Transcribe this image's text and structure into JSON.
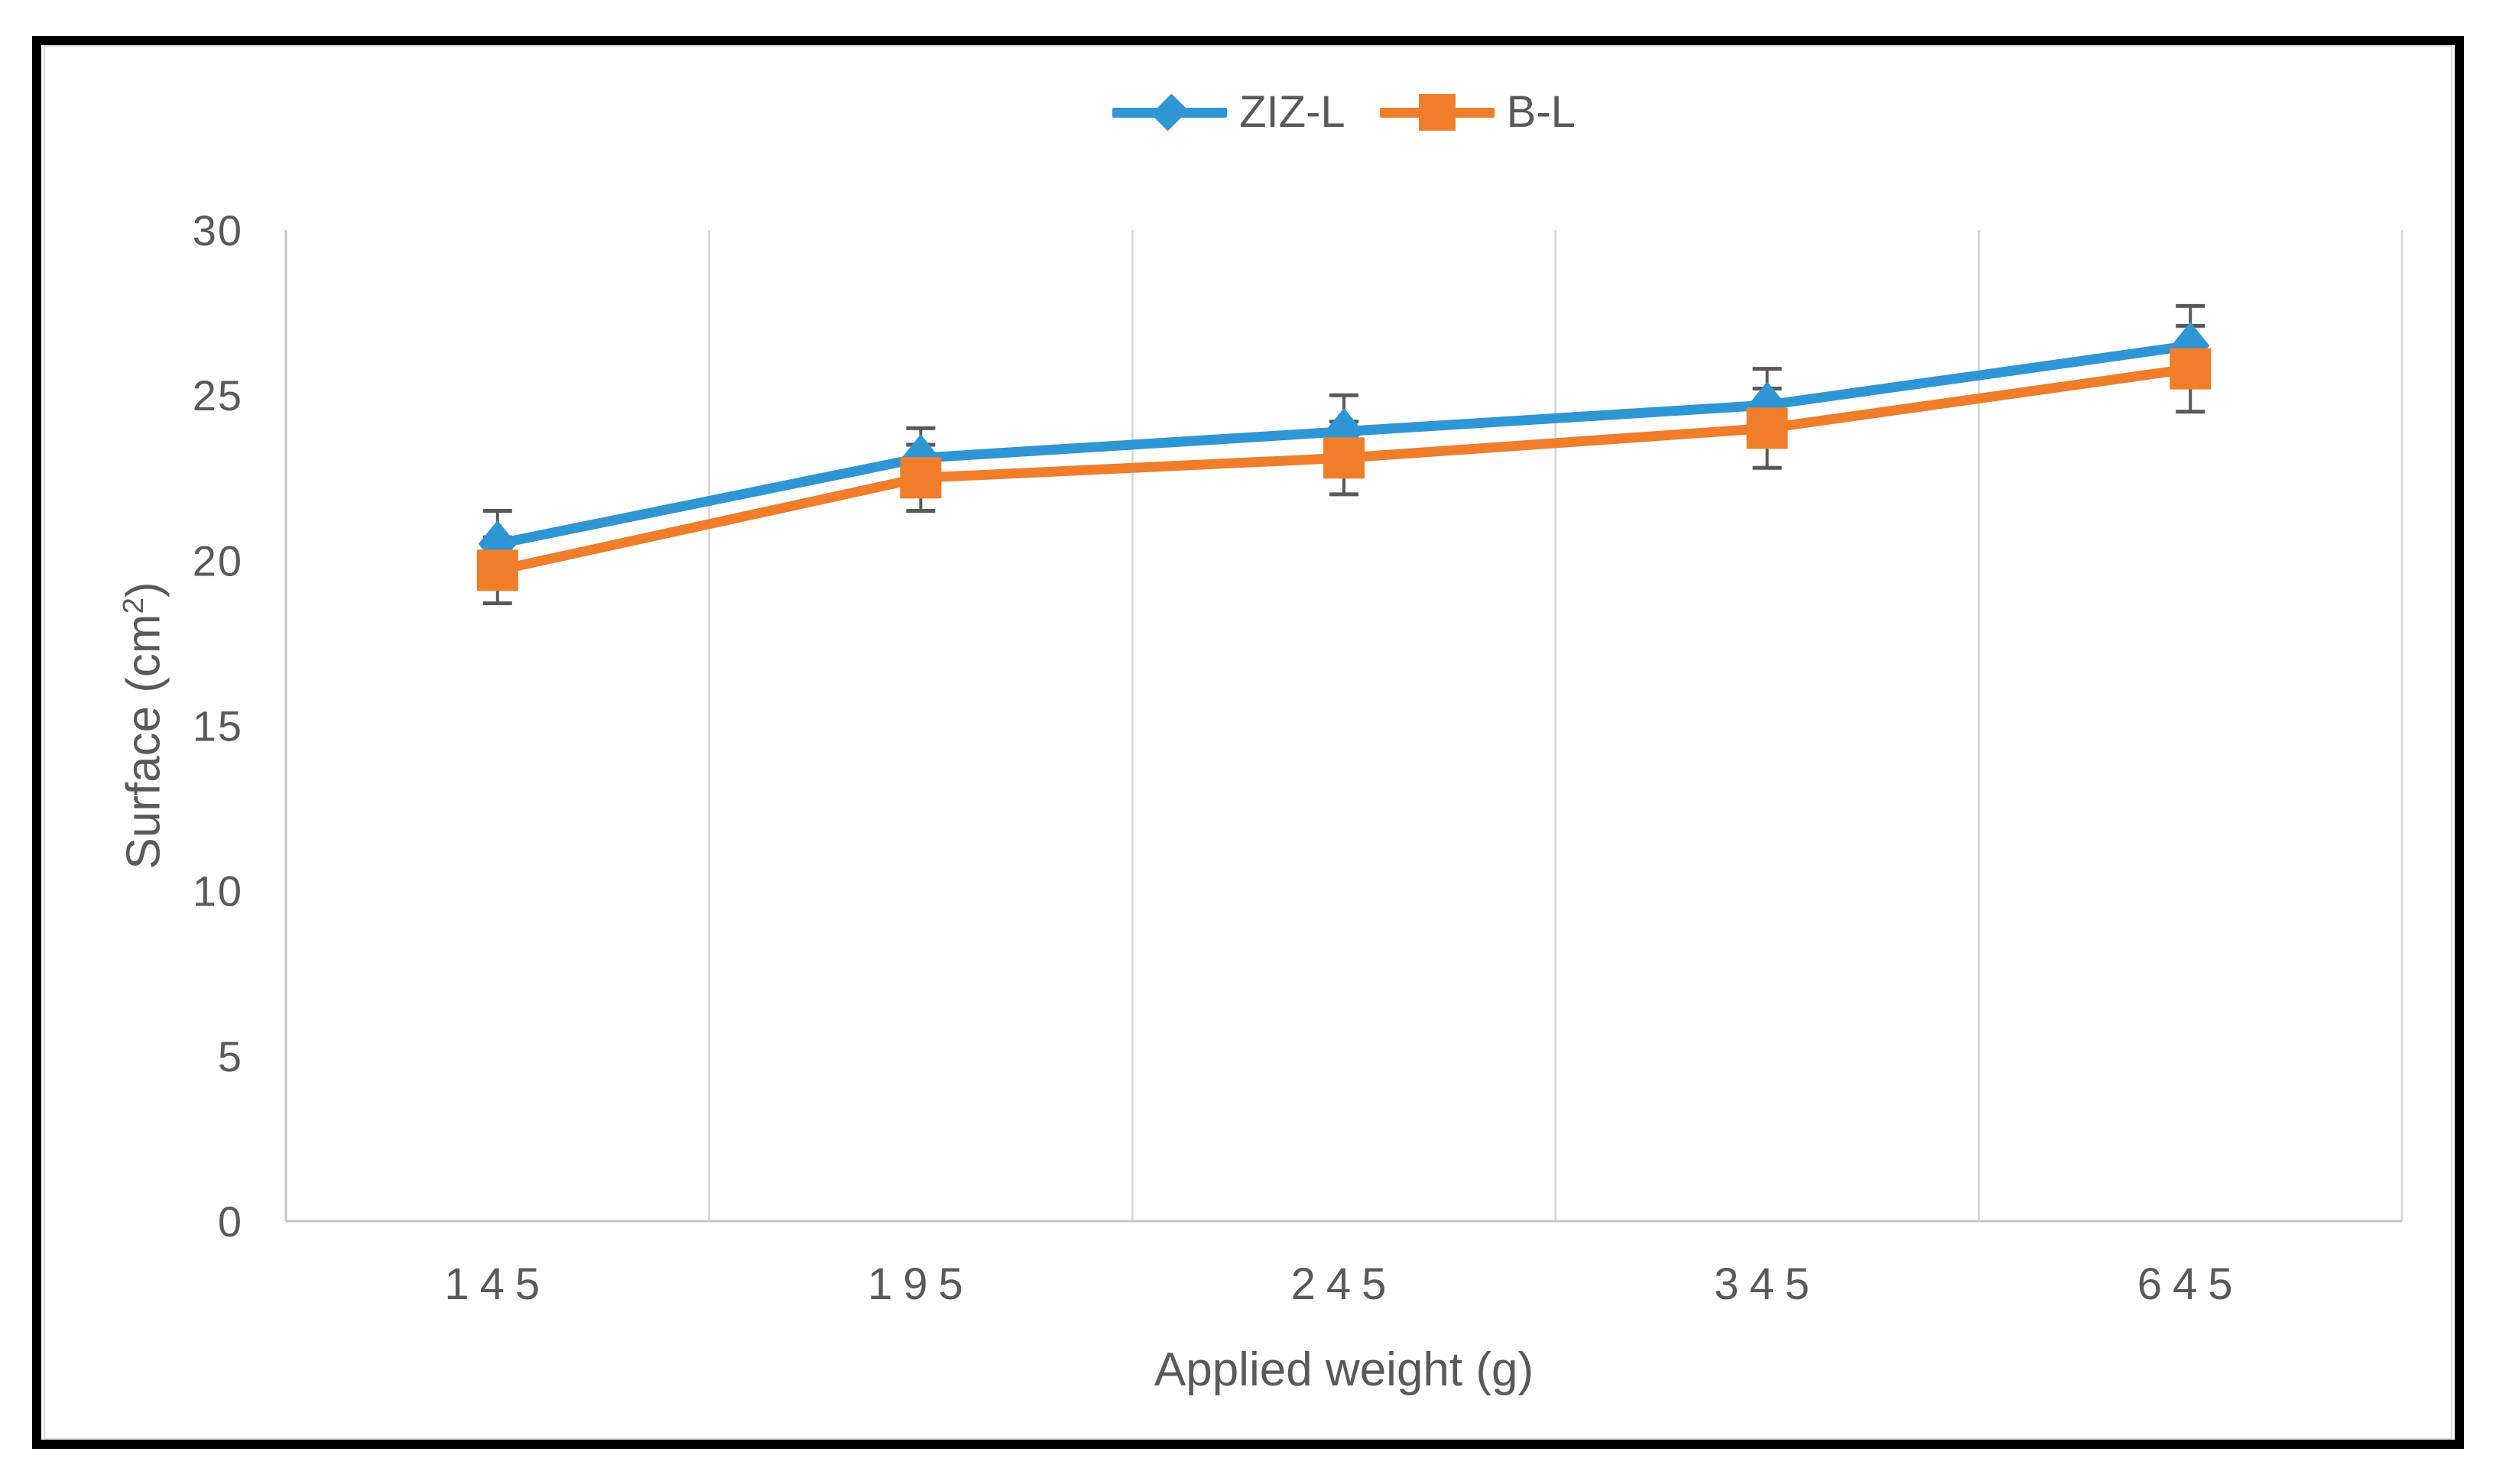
{
  "window": {
    "background": "#ffffff",
    "frame_border_color": "#000000",
    "chart_border_color": "#d9d9d9",
    "text_color": "#595959"
  },
  "chart_data": {
    "type": "line",
    "title": "",
    "categories": [
      "145",
      "195",
      "245",
      "345",
      "645"
    ],
    "series": [
      {
        "name": "ZIZ-L",
        "color": "#2e96d5",
        "marker": "diamond",
        "values": [
          20.5,
          23.1,
          23.9,
          24.7,
          26.5
        ],
        "errors": [
          1.0,
          0.9,
          1.1,
          1.1,
          1.2
        ]
      },
      {
        "name": "B-L",
        "color": "#f07d2a",
        "marker": "square",
        "values": [
          19.7,
          22.5,
          23.1,
          24.0,
          25.8
        ],
        "errors": [
          1.0,
          1.0,
          1.1,
          1.2,
          1.3
        ]
      }
    ],
    "xlabel": "Applied weight (g)",
    "ylabel": "Surface (cm²)",
    "ylabel_parts": {
      "prefix": "Surface (cm",
      "sup": "2",
      "suffix": ")"
    },
    "ylim": [
      0,
      30
    ],
    "yticks": [
      0,
      5,
      10,
      15,
      20,
      25,
      30
    ],
    "grid": "vertical",
    "gridline_color": "#d9d9d9",
    "axis_line_color": "#c6c6c6",
    "error_bar_color": "#595959",
    "legend_position": "top"
  }
}
